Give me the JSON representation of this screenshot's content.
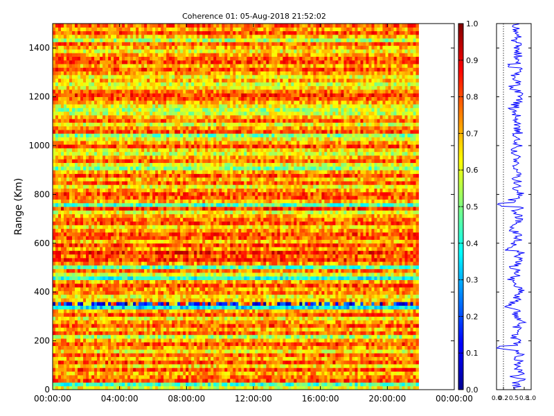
{
  "chart_data": [
    {
      "type": "heatmap",
      "title": "Coherence 01: 05-Aug-2018 21:52:02",
      "xlabel": "",
      "ylabel": "Range (Km)",
      "xlim": [
        "00:00:00",
        "24:00:00"
      ],
      "ylim": [
        0,
        1500
      ],
      "x_ticks": [
        "00:00:00",
        "04:00:00",
        "08:00:00",
        "12:00:00",
        "16:00:00",
        "20:00:00",
        "00:00:00"
      ],
      "y_ticks": [
        "0",
        "200",
        "400",
        "600",
        "800",
        "1000",
        "1200",
        "1400"
      ],
      "data_extent_hours": [
        0,
        21.87
      ],
      "range_gate_km": 15,
      "colormap": "jet",
      "clim": [
        0.0,
        1.0
      ],
      "colorbar_ticks": [
        "0.0",
        "0.1",
        "0.2",
        "0.3",
        "0.4",
        "0.5",
        "0.6",
        "0.7",
        "0.8",
        "0.9",
        "1.0"
      ],
      "row_mean_coherence": [
        0.6,
        0.45,
        0.8,
        0.75,
        0.7,
        0.8,
        0.65,
        0.8,
        0.7,
        0.78,
        0.62,
        0.72,
        0.8,
        0.7,
        0.55,
        0.78,
        0.68,
        0.8,
        0.72,
        0.62,
        0.8,
        0.7,
        0.35,
        0.1,
        0.68,
        0.62,
        0.75,
        0.72,
        0.8,
        0.7,
        0.4,
        0.6,
        0.75,
        0.45,
        0.72,
        0.82,
        0.78,
        0.85,
        0.72,
        0.8,
        0.68,
        0.78,
        0.8,
        0.72,
        0.65,
        0.8,
        0.75,
        0.7,
        0.6,
        0.82,
        0.45,
        0.7,
        0.78,
        0.8,
        0.72,
        0.62,
        0.78,
        0.68,
        0.8,
        0.7,
        0.5,
        0.6,
        0.78,
        0.7,
        0.58,
        0.65,
        0.8,
        0.72,
        0.62,
        0.5,
        0.8,
        0.72,
        0.6,
        0.78,
        0.68,
        0.58,
        0.55,
        0.6,
        0.7,
        0.78,
        0.82,
        0.75,
        0.65,
        0.58,
        0.7,
        0.62,
        0.72,
        0.8,
        0.7,
        0.8,
        0.78,
        0.72,
        0.62,
        0.7,
        0.78,
        0.55,
        0.68,
        0.8,
        0.7,
        0.78
      ]
    },
    {
      "type": "line",
      "title": "",
      "xlabel": "",
      "ylabel": "",
      "xlim": [
        0.0,
        1.0
      ],
      "x_ticks": [
        "0.0",
        "0.2",
        "0.5",
        "0.8",
        "1.0"
      ],
      "reference_line_x": 0.2,
      "series": [
        {
          "values": [
            0.62,
            0.58,
            0.7,
            0.5,
            0.72,
            0.6,
            0.55,
            0.68,
            0.6,
            0.7,
            0.52,
            0.1,
            0.6,
            0.65,
            0.45,
            0.7,
            0.6,
            0.55,
            0.72,
            0.62,
            0.5,
            0.6,
            0.35,
            0.4,
            0.6,
            0.58,
            0.62,
            0.68,
            0.55,
            0.6,
            0.45,
            0.62,
            0.6,
            0.5,
            0.62,
            0.7,
            0.6,
            0.68,
            0.3,
            0.55,
            0.62,
            0.58,
            0.6,
            0.5,
            0.38,
            0.6,
            0.62,
            0.6,
            0.55,
            0.7,
            0.0,
            0.45,
            0.6,
            0.68,
            0.6,
            0.58,
            0.62,
            0.55,
            0.6,
            0.62,
            0.5,
            0.58,
            0.6,
            0.62,
            0.55,
            0.5,
            0.62,
            0.6,
            0.55,
            0.52,
            0.65,
            0.6,
            0.55,
            0.62,
            0.58,
            0.5,
            0.48,
            0.55,
            0.6,
            0.62,
            0.68,
            0.6,
            0.4,
            0.55,
            0.6,
            0.5,
            0.6,
            0.62,
            0.45,
            0.65,
            0.6,
            0.62,
            0.55,
            0.58,
            0.6,
            0.5,
            0.6,
            0.62,
            0.58,
            0.6
          ]
        }
      ]
    }
  ]
}
